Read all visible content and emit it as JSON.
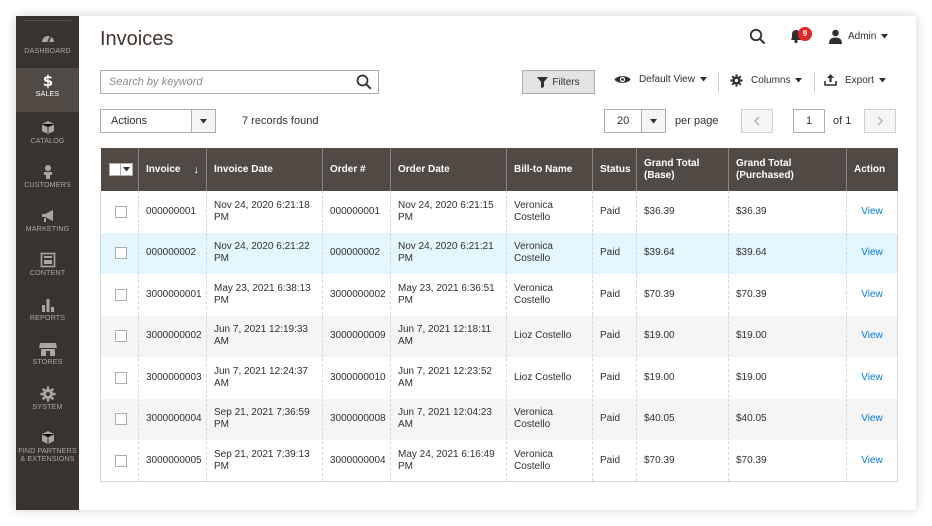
{
  "sidebar": {
    "items": [
      {
        "label": "DASHBOARD",
        "icon": "dashboard-icon"
      },
      {
        "label": "SALES",
        "icon": "dollar-icon",
        "active": true
      },
      {
        "label": "CATALOG",
        "icon": "cube-icon"
      },
      {
        "label": "CUSTOMERS",
        "icon": "person-icon"
      },
      {
        "label": "MARKETING",
        "icon": "megaphone-icon"
      },
      {
        "label": "CONTENT",
        "icon": "layout-icon"
      },
      {
        "label": "REPORTS",
        "icon": "bar-chart-icon"
      },
      {
        "label": "STORES",
        "icon": "store-icon"
      },
      {
        "label": "SYSTEM",
        "icon": "gear-icon"
      },
      {
        "label": "FIND PARTNERS",
        "label2": "& EXTENSIONS",
        "icon": "box-icon"
      }
    ]
  },
  "header": {
    "title": "Invoices",
    "notifications_count": "9",
    "user_label": "Admin"
  },
  "toolbar": {
    "search_placeholder": "Search by keyword",
    "filters_label": "Filters",
    "view_label": "Default View",
    "columns_label": "Columns",
    "export_label": "Export",
    "actions_label": "Actions",
    "records_found": "7 records found",
    "per_page_value": "20",
    "per_page_label": "per page",
    "current_page": "1",
    "of_pages": "of 1"
  },
  "table": {
    "columns": [
      "Invoice",
      "Invoice Date",
      "Order #",
      "Order Date",
      "Bill-to Name",
      "Status",
      "Grand Total (Base)",
      "Grand Total (Purchased)",
      "Action"
    ],
    "column_lines": [
      [
        "Invoice"
      ],
      [
        "Invoice Date"
      ],
      [
        "Order #"
      ],
      [
        "Order Date"
      ],
      [
        "Bill-to Name"
      ],
      [
        "Status"
      ],
      [
        "Grand Total",
        "(Base)"
      ],
      [
        "Grand Total",
        "(Purchased)"
      ],
      [
        "Action"
      ]
    ],
    "rows": [
      {
        "invoice": "000000001",
        "invoice_date": [
          "Nov 24, 2020 6:21:18",
          "PM"
        ],
        "order": "000000001",
        "order_date": [
          "Nov 24, 2020 6:21:15",
          "PM"
        ],
        "bill_to": [
          "Veronica",
          "Costello"
        ],
        "status": "Paid",
        "gt_base": "$36.39",
        "gt_purchased": "$36.39",
        "action": "View"
      },
      {
        "invoice": "000000002",
        "invoice_date": [
          "Nov 24, 2020 6:21:22",
          "PM"
        ],
        "order": "000000002",
        "order_date": [
          "Nov 24, 2020 6:21:21",
          "PM"
        ],
        "bill_to": [
          "Veronica",
          "Costello"
        ],
        "status": "Paid",
        "gt_base": "$39.64",
        "gt_purchased": "$39.64",
        "action": "View"
      },
      {
        "invoice": "3000000001",
        "invoice_date": [
          "May 23, 2021 6:38:13",
          "PM"
        ],
        "order": "3000000002",
        "order_date": [
          "May 23, 2021 6:36:51",
          "PM"
        ],
        "bill_to": [
          "Veronica",
          "Costello"
        ],
        "status": "Paid",
        "gt_base": "$70.39",
        "gt_purchased": "$70.39",
        "action": "View"
      },
      {
        "invoice": "3000000002",
        "invoice_date": [
          "Jun 7, 2021 12:19:33",
          "AM"
        ],
        "order": "3000000009",
        "order_date": [
          "Jun 7, 2021 12:18:11",
          "AM"
        ],
        "bill_to": [
          "Lioz Costello"
        ],
        "status": "Paid",
        "gt_base": "$19.00",
        "gt_purchased": "$19.00",
        "action": "View"
      },
      {
        "invoice": "3000000003",
        "invoice_date": [
          "Jun 7, 2021 12:24:37",
          "AM"
        ],
        "order": "3000000010",
        "order_date": [
          "Jun 7, 2021 12:23:52",
          "AM"
        ],
        "bill_to": [
          "Lioz Costello"
        ],
        "status": "Paid",
        "gt_base": "$19.00",
        "gt_purchased": "$19.00",
        "action": "View"
      },
      {
        "invoice": "3000000004",
        "invoice_date": [
          "Sep 21, 2021 7:36:59",
          "PM"
        ],
        "order": "3000000008",
        "order_date": [
          "Jun 7, 2021 12:04:23",
          "AM"
        ],
        "bill_to": [
          "Veronica",
          "Costello"
        ],
        "status": "Paid",
        "gt_base": "$40.05",
        "gt_purchased": "$40.05",
        "action": "View"
      },
      {
        "invoice": "3000000005",
        "invoice_date": [
          "Sep 21, 2021 7:39:13",
          "PM"
        ],
        "order": "3000000004",
        "order_date": [
          "May 24, 2021 6:16:49",
          "PM"
        ],
        "bill_to": [
          "Veronica",
          "Costello"
        ],
        "status": "Paid",
        "gt_base": "$70.39",
        "gt_purchased": "$70.39",
        "action": "View"
      }
    ]
  },
  "colors": {
    "sidebar_bg": "#373330",
    "sidebar_active": "#514943",
    "header_bg": "#514943",
    "link": "#007bdb",
    "row_highlight": "#e5f7fe",
    "badge": "#e22626"
  }
}
